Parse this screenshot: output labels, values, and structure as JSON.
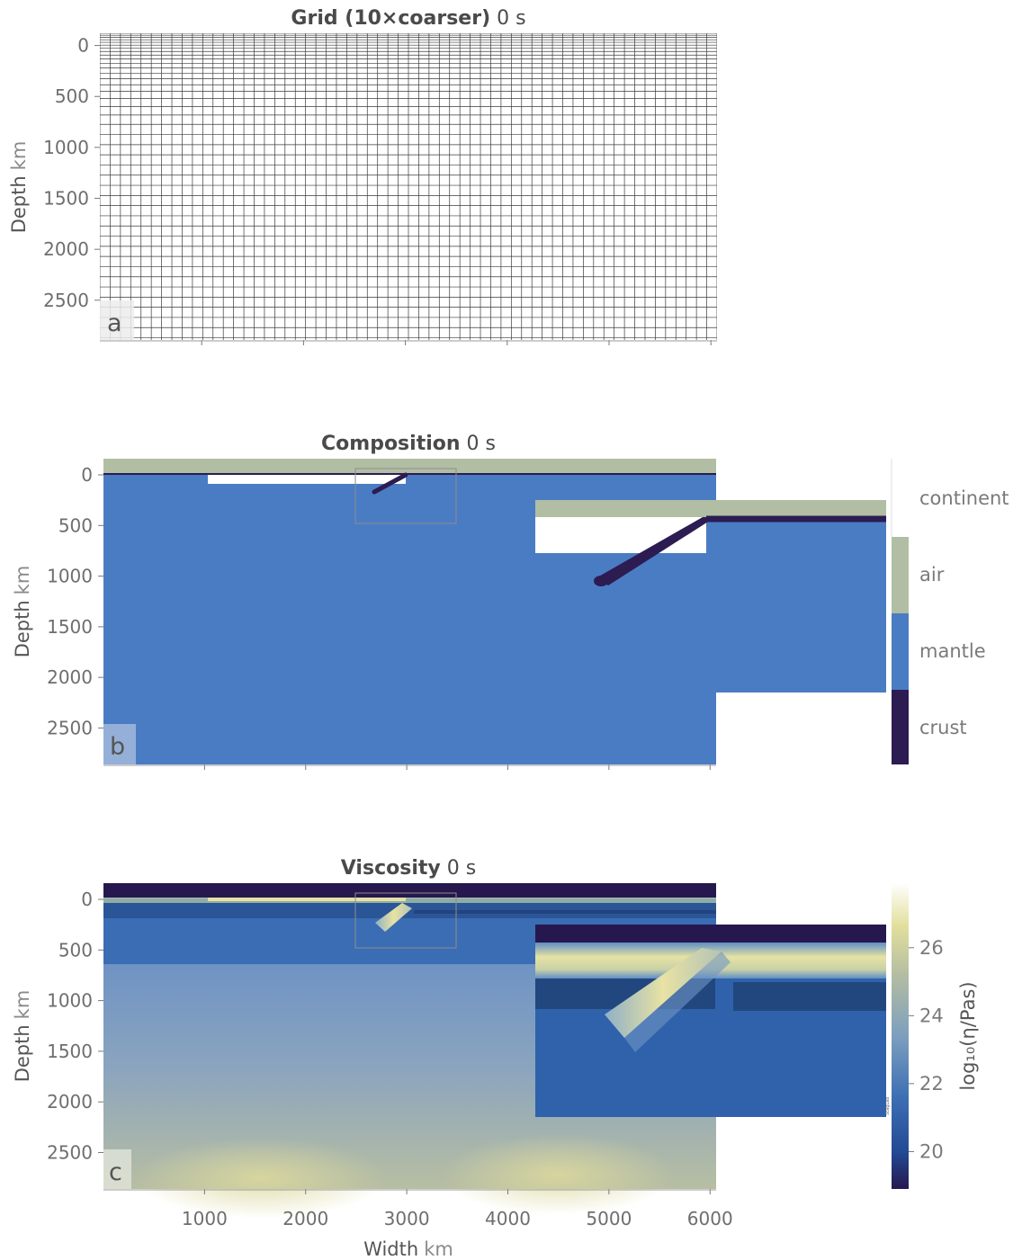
{
  "chart_data": [
    {
      "type": "heatmap",
      "panel_label": "a",
      "title_bold": "Grid (10×coarser)",
      "title_time": "0 s",
      "ylabel": "Depth",
      "ylabel_unit": "km",
      "xlim": [
        0,
        6060
      ],
      "ylim": [
        2890,
        -120
      ],
      "yticks": [
        "0",
        "500",
        "1000",
        "1500",
        "2000",
        "2500"
      ],
      "ytick_values": [
        0,
        500,
        1000,
        1500,
        2000,
        2500
      ],
      "xtick_values": [
        1000,
        2000,
        3000,
        4000,
        5000,
        6000
      ],
      "grid": true
    },
    {
      "type": "heatmap",
      "panel_label": "b",
      "title_bold": "Composition",
      "title_time": "0 s",
      "ylabel": "Depth",
      "ylabel_unit": "km",
      "xlim": [
        0,
        6060
      ],
      "ylim": [
        2860,
        -160
      ],
      "yticks": [
        "0",
        "500",
        "1000",
        "1500",
        "2000",
        "2500"
      ],
      "ytick_values": [
        0,
        500,
        1000,
        1500,
        2000,
        2500
      ],
      "xtick_values": [
        1000,
        2000,
        3000,
        4000,
        5000,
        6000
      ],
      "categories": [
        "continent",
        "air",
        "mantle",
        "crust"
      ],
      "colors": {
        "continent": "#ffffff",
        "air": "#b1bea3",
        "mantle": "#4a7cc3",
        "crust": "#2c1c52"
      },
      "inset_region": {
        "x": [
          2500,
          3500
        ],
        "depth": [
          -50,
          480
        ]
      }
    },
    {
      "type": "heatmap",
      "panel_label": "c",
      "title_bold": "Viscosity",
      "title_time": "0 s",
      "xlabel": "Width",
      "xlabel_unit": "km",
      "ylabel": "Depth",
      "ylabel_unit": "km",
      "xlim": [
        0,
        6060
      ],
      "ylim": [
        2860,
        -160
      ],
      "yticks": [
        "0",
        "500",
        "1000",
        "1500",
        "2000",
        "2500"
      ],
      "ytick_values": [
        0,
        500,
        1000,
        1500,
        2000,
        2500
      ],
      "xticks": [
        "1000",
        "2000",
        "3000",
        "4000",
        "5000",
        "6000"
      ],
      "xtick_values": [
        1000,
        2000,
        3000,
        4000,
        5000,
        6000
      ],
      "colorbar_label": "log₁₀(η/Pas)",
      "colorbar_ticks": [
        "20",
        "22",
        "24",
        "26"
      ],
      "colorbar_tick_values": [
        20,
        22,
        24,
        26
      ],
      "colorbar_range": [
        18.9,
        27.9
      ],
      "inset_region": {
        "x": [
          2500,
          3500
        ],
        "depth": [
          -50,
          480
        ]
      }
    }
  ]
}
